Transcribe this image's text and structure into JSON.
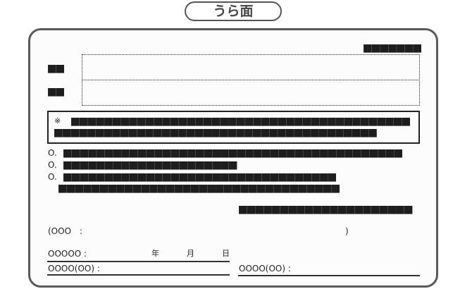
{
  "header": {
    "title": "うら面"
  },
  "card": {
    "top_right": "■■■■■■■",
    "field1_label": "■■",
    "field2_label": "■■",
    "notice": {
      "mark": "※",
      "line1": "■■■■■■■■■■■■■■■■■■■■■■■■■■■■■■■■■■■■■■■■■",
      "line2": "■■■■■■■■■■■■■■■■■■■■■■■■■■■■■■■■■■■■■■■"
    },
    "items": [
      {
        "bullet": "O.",
        "text": "■■■■■■■■■■■■■■■■■■■■■■■■■■■■■■■■■■■■■■■■■"
      },
      {
        "bullet": "O.",
        "text": "■■■■■■■■■■■■■■■■■■■■■"
      },
      {
        "bullet": "O.",
        "text": "■■■■■■■■■■■■■■■■■■■■■■■■■■■■■■■■■"
      }
    ],
    "item3_cont": "■■■■■■■■■■■■■■■■■■■■■■■■■■■■■■■■■■",
    "right_line": "■■■■■■■■■■■■■■■■■■■■■",
    "paren_open": "(OOO　:",
    "paren_close": ")",
    "date_label": "OOOOO :",
    "year": "年",
    "month": "月",
    "day": "日",
    "sign_left": "OOOO(OO) :",
    "sign_right": "OOOO(OO) :"
  }
}
